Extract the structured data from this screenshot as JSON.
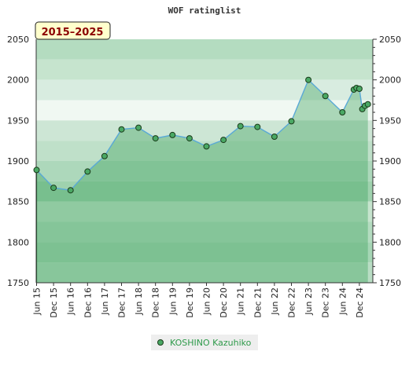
{
  "chart_data": {
    "type": "area",
    "title": "WOF ratinglist",
    "period": "2015–2025",
    "ylim": [
      1750,
      2050
    ],
    "y_ticks": [
      1750,
      1800,
      1850,
      1900,
      1950,
      2000,
      2050
    ],
    "y_tick_labels": [
      "1750",
      "1800",
      "1850",
      "1900",
      "1950",
      "2000",
      "2050"
    ],
    "x_tick_labels": [
      "Jun 15",
      "Dec 15",
      "Jun 16",
      "Dec 16",
      "Jun 17",
      "Dec 17",
      "Jun 18",
      "Dec 18",
      "Jun 19",
      "Dec 19",
      "Jun 20",
      "Dec 20",
      "Jun 21",
      "Dec 21",
      "Jun 22",
      "Dec 22",
      "Jun 23",
      "Dec 23",
      "Jun 24",
      "Dec 24"
    ],
    "series": [
      {
        "name": "KOSHINO Kazuhiko",
        "points": [
          [
            "Jun 15",
            1889
          ],
          [
            "Dec 15",
            1867
          ],
          [
            "Jun 16",
            1864
          ],
          [
            "Dec 16",
            1887
          ],
          [
            "Jun 17",
            1906
          ],
          [
            "Dec 17",
            1939
          ],
          [
            "Jun 18",
            1941
          ],
          [
            "Dec 18",
            1928
          ],
          [
            "Jun 19",
            1932
          ],
          [
            "Dec 19",
            1928
          ],
          [
            "Jun 20",
            1918
          ],
          [
            "Dec 20",
            1926
          ],
          [
            "Jun 21",
            1943
          ],
          [
            "Dec 21",
            1942
          ],
          [
            "Jun 22",
            1930
          ],
          [
            "Dec 22",
            1949
          ],
          [
            "Jun 23",
            2000
          ],
          [
            "Dec 23",
            1980
          ],
          [
            "Jun 24",
            1960
          ],
          [
            "Oct 24",
            1988
          ],
          [
            "Nov 24",
            1990
          ],
          [
            "Dec 24",
            1989
          ],
          [
            "Jan 25",
            1964
          ],
          [
            "Feb 25",
            1968
          ],
          [
            "Mar 25",
            1970
          ]
        ],
        "x_index": [
          0,
          1,
          2,
          3,
          4,
          5,
          6,
          7,
          8,
          9,
          10,
          11,
          12,
          13,
          14,
          15,
          16,
          17,
          18,
          18.67,
          18.83,
          19,
          19.17,
          19.33,
          19.5
        ]
      }
    ],
    "colors": {
      "line": "#5aa9d6",
      "marker": "#4aa864",
      "area": "#3aa05a",
      "badge_bg": "#ffffcc",
      "legend_text": "#2e9a4a"
    },
    "grid": true,
    "legend_position": "bottom"
  }
}
